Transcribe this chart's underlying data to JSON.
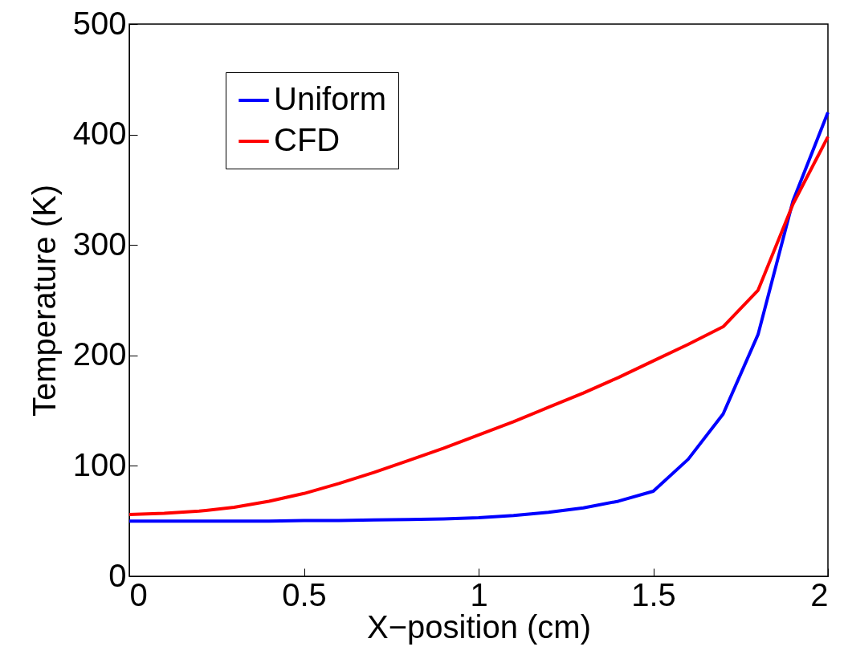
{
  "chart_data": {
    "type": "line",
    "xlabel": "X−position (cm)",
    "ylabel": "Temperature (K)",
    "x": [
      0,
      0.1,
      0.2,
      0.3,
      0.4,
      0.5,
      0.6,
      0.7,
      0.8,
      0.9,
      1.0,
      1.1,
      1.2,
      1.3,
      1.4,
      1.5,
      1.6,
      1.7,
      1.8,
      1.9,
      2.0
    ],
    "series": [
      {
        "name": "Uniform",
        "color": "#0000ff",
        "values": [
          50,
          50,
          50,
          50,
          50,
          50.5,
          50.5,
          51,
          51.5,
          52,
          53,
          55,
          58,
          62,
          68,
          77,
          106,
          147,
          219,
          340,
          420
        ]
      },
      {
        "name": "CFD",
        "color": "#ff0000",
        "values": [
          56,
          57,
          59,
          62.5,
          68,
          75,
          84,
          94,
          105,
          116,
          128,
          140,
          153,
          166,
          180,
          195,
          210,
          226,
          259,
          337,
          398
        ]
      }
    ],
    "xlim": [
      0,
      2
    ],
    "xticks": [
      0,
      0.5,
      1,
      1.5,
      2
    ],
    "ylim": [
      0,
      500
    ],
    "yticks": [
      0,
      100,
      200,
      300,
      400,
      500
    ],
    "grid": false,
    "legend": "top left",
    "line_style": "solid",
    "marker": "none"
  }
}
